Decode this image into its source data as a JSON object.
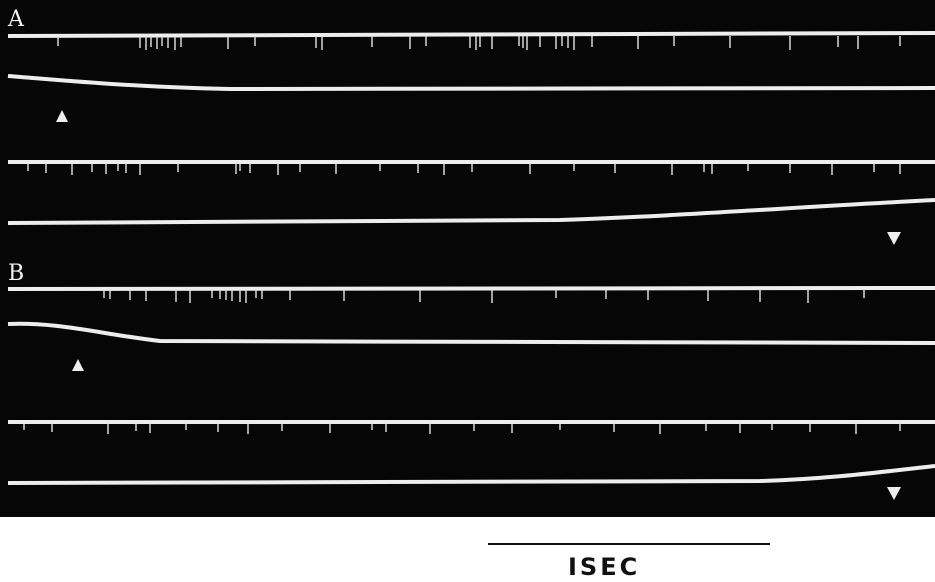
{
  "panels": [
    {
      "label": "A"
    },
    {
      "label": "B"
    }
  ],
  "scale_bar": {
    "label": "ISEC"
  },
  "colors": {
    "record_background": "#060606",
    "trace": "#ededed",
    "page_background": "#ffffff",
    "scale_bar": "#111111"
  },
  "stimulus_markers": {
    "onset": "triangle-up-icon",
    "offset": "triangle-down-icon"
  }
}
